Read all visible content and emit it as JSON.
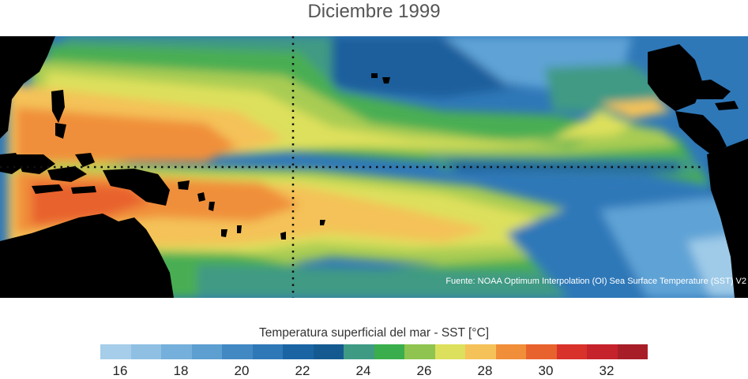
{
  "title": "Diciembre 1999",
  "source_note": "Fuente: NOAA Optimum Interpolation (OI) Sea Surface Temperature (SST) V2",
  "colorbar": {
    "label": "Temperatura superficial del mar - SST  [°C]",
    "ticks": [
      "16",
      "18",
      "20",
      "22",
      "24",
      "26",
      "28",
      "30",
      "32"
    ],
    "colors": [
      "#a6cde9",
      "#8fc0e3",
      "#74b0db",
      "#5d9fd1",
      "#4289c4",
      "#2f78b8",
      "#1a64a4",
      "#145a91",
      "#3f9a84",
      "#3aae4c",
      "#8fc450",
      "#dde05c",
      "#f5c259",
      "#f18e3a",
      "#e8622d",
      "#d8322a",
      "#c6222c",
      "#a81e28"
    ]
  },
  "map_colors": {
    "land": "#000000",
    "deep_blue": "#1d5e9c",
    "mid_blue": "#2f78b8",
    "light_blue": "#5fa3d6",
    "pale_blue": "#9fcbe8",
    "teal": "#3f9a84",
    "green": "#4aae52",
    "yellowgreen": "#a8cc52",
    "yellow": "#dde05c",
    "lightorange": "#f4c259",
    "orange": "#f08f3b",
    "redorange": "#e8622d",
    "grid": "#111111"
  }
}
